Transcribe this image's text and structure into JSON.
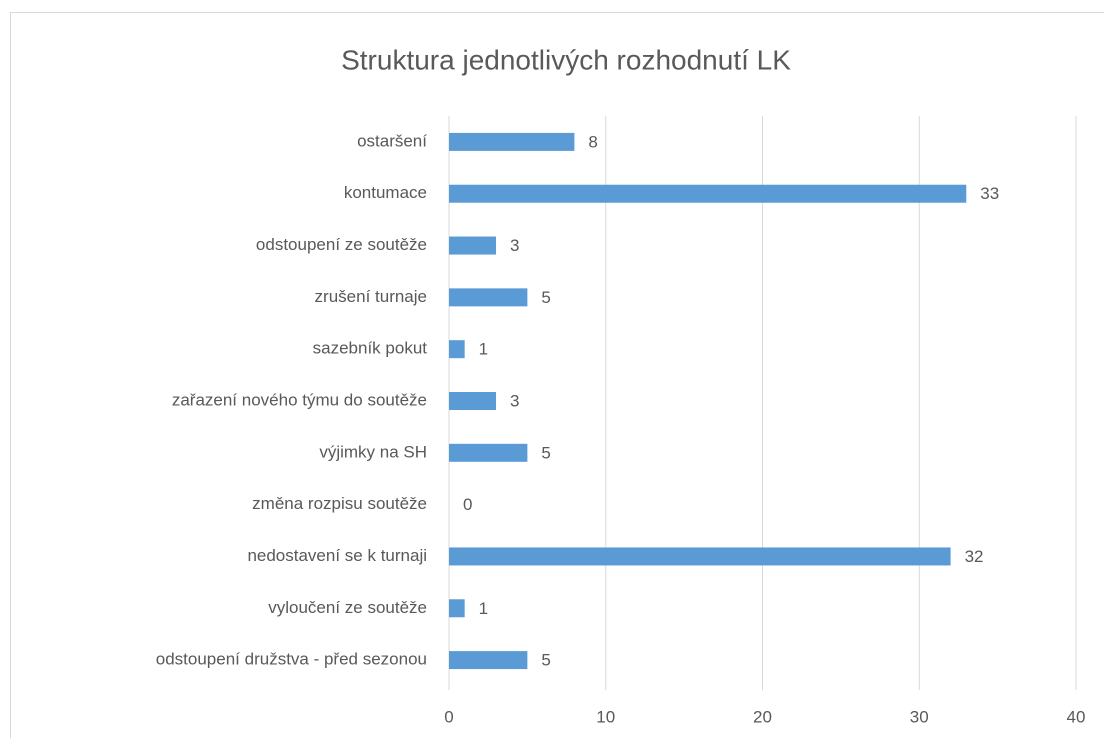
{
  "chart_data": {
    "type": "bar",
    "orientation": "horizontal",
    "title": "Struktura jednotlivých rozhodnutí LK",
    "categories": [
      "ostaršení",
      "kontumace",
      "odstoupení ze soutěže",
      "zrušení turnaje",
      "sazebník pokut",
      "zařazení nového týmu do soutěže",
      "výjimky na SH",
      "změna rozpisu soutěže",
      "nedostavení se k turnaji",
      "vyloučení ze soutěže",
      "odstoupení družstva - před sezonou"
    ],
    "values": [
      8,
      33,
      3,
      5,
      1,
      3,
      5,
      0,
      32,
      1,
      5
    ],
    "color": "#5b9bd5",
    "xlim": [
      0,
      40
    ],
    "xticks": [
      0,
      10,
      20,
      30,
      40
    ],
    "grid": true,
    "data_labels": true
  }
}
